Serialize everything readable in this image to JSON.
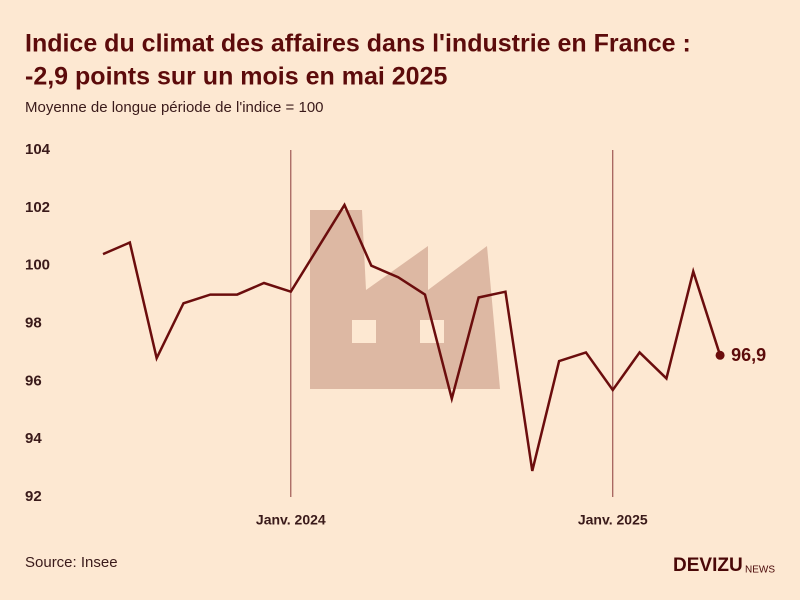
{
  "chart_data": {
    "type": "line",
    "title": "Indice du climat des affaires dans l'industrie en France :",
    "title_line2": "-2,9 points sur un mois en mai 2025",
    "subtitle": "Moyenne de longue période de l'indice = 100",
    "source": "Source: Insee",
    "brand": "DEVIZU",
    "brand_suffix": "NEWS",
    "categories": [
      null,
      null,
      null,
      null,
      null,
      null,
      null,
      "Janv. 2024",
      null,
      null,
      null,
      null,
      null,
      null,
      null,
      null,
      null,
      null,
      null,
      "Janv. 2025",
      null,
      null,
      null,
      null
    ],
    "series": [
      {
        "name": "Indice du climat des affaires",
        "color": "#6b0d0d",
        "values": [
          100.4,
          100.8,
          96.8,
          98.7,
          99.0,
          99.0,
          99.4,
          99.1,
          100.6,
          102.1,
          100.0,
          99.6,
          99.0,
          95.4,
          98.9,
          99.1,
          92.9,
          96.7,
          97.0,
          95.7,
          97.0,
          96.1,
          99.8,
          96.9
        ],
        "value_labels": [
          null,
          null,
          null,
          null,
          null,
          null,
          null,
          null,
          null,
          null,
          null,
          null,
          null,
          null,
          null,
          null,
          null,
          null,
          null,
          null,
          null,
          null,
          null,
          "96,9"
        ]
      }
    ],
    "ylim": [
      92,
      104
    ],
    "yticks": [
      92,
      94,
      96,
      98,
      100,
      102,
      104
    ]
  }
}
